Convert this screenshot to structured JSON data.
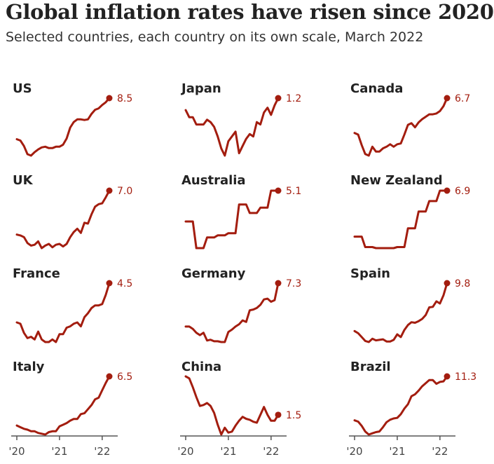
{
  "header": {
    "title": "Global inflation rates have risen since 2020",
    "subtitle": "Selected countries, each country on its own scale, March 2022"
  },
  "colors": {
    "line": "#a31d0f",
    "axis": "#555555",
    "text": "#222222"
  },
  "chart_data": {
    "type": "line",
    "title": "Global inflation rates have risen since 2020",
    "subtitle": "Selected countries, each country on its own scale, March 2022",
    "x_tick_labels": [
      "'20",
      "'21",
      "'22"
    ],
    "x": [
      "2020-01",
      "2020-02",
      "2020-03",
      "2020-04",
      "2020-05",
      "2020-06",
      "2020-07",
      "2020-08",
      "2020-09",
      "2020-10",
      "2020-11",
      "2020-12",
      "2021-01",
      "2021-02",
      "2021-03",
      "2021-04",
      "2021-05",
      "2021-06",
      "2021-07",
      "2021-08",
      "2021-09",
      "2021-10",
      "2021-11",
      "2021-12",
      "2022-01",
      "2022-02",
      "2022-03"
    ],
    "panels": [
      {
        "name": "US",
        "last_label": "8.5",
        "values": [
          2.5,
          2.3,
          1.5,
          0.3,
          0.1,
          0.6,
          1.0,
          1.3,
          1.4,
          1.2,
          1.2,
          1.4,
          1.4,
          1.7,
          2.6,
          4.2,
          5.0,
          5.4,
          5.4,
          5.3,
          5.4,
          6.2,
          6.8,
          7.0,
          7.5,
          7.9,
          8.5
        ]
      },
      {
        "name": "Japan",
        "last_label": "1.2",
        "values": [
          0.7,
          0.4,
          0.4,
          0.1,
          0.1,
          0.1,
          0.3,
          0.2,
          0.0,
          -0.4,
          -0.9,
          -1.2,
          -0.6,
          -0.4,
          -0.2,
          -1.1,
          -0.8,
          -0.5,
          -0.3,
          -0.4,
          0.2,
          0.1,
          0.6,
          0.8,
          0.5,
          0.9,
          1.2
        ]
      },
      {
        "name": "Canada",
        "last_label": "6.7",
        "values": [
          2.4,
          2.2,
          0.9,
          -0.2,
          -0.4,
          0.7,
          0.1,
          0.1,
          0.5,
          0.7,
          1.0,
          0.7,
          1.0,
          1.1,
          2.2,
          3.4,
          3.6,
          3.1,
          3.7,
          4.1,
          4.4,
          4.7,
          4.7,
          4.8,
          5.1,
          5.7,
          6.7
        ]
      },
      {
        "name": "UK",
        "last_label": "7.0",
        "values": [
          1.8,
          1.7,
          1.5,
          0.8,
          0.5,
          0.6,
          1.0,
          0.2,
          0.5,
          0.7,
          0.3,
          0.6,
          0.7,
          0.4,
          0.7,
          1.5,
          2.1,
          2.5,
          2.0,
          3.2,
          3.1,
          4.2,
          5.1,
          5.4,
          5.5,
          6.2,
          7.0
        ]
      },
      {
        "name": "Australia",
        "last_label": "5.1",
        "values": [
          2.2,
          2.2,
          2.2,
          -0.3,
          -0.3,
          -0.3,
          0.7,
          0.7,
          0.7,
          0.9,
          0.9,
          0.9,
          1.1,
          1.1,
          1.1,
          3.8,
          3.8,
          3.8,
          3.0,
          3.0,
          3.0,
          3.5,
          3.5,
          3.5,
          5.1,
          5.1,
          5.1
        ]
      },
      {
        "name": "New Zealand",
        "last_label": "6.9",
        "values": [
          2.5,
          2.5,
          2.5,
          1.5,
          1.5,
          1.5,
          1.4,
          1.4,
          1.4,
          1.4,
          1.4,
          1.4,
          1.5,
          1.5,
          1.5,
          3.3,
          3.3,
          3.3,
          4.9,
          4.9,
          4.9,
          5.9,
          5.9,
          5.9,
          6.9,
          6.9,
          6.9
        ]
      },
      {
        "name": "France",
        "last_label": "4.5",
        "values": [
          1.5,
          1.4,
          0.7,
          0.3,
          0.4,
          0.2,
          0.8,
          0.2,
          0.0,
          0.0,
          0.2,
          0.0,
          0.6,
          0.6,
          1.1,
          1.2,
          1.4,
          1.5,
          1.2,
          1.9,
          2.2,
          2.6,
          2.8,
          2.8,
          2.9,
          3.6,
          4.5
        ]
      },
      {
        "name": "Germany",
        "last_label": "7.3",
        "values": [
          1.7,
          1.7,
          1.4,
          0.9,
          0.6,
          0.9,
          -0.1,
          0.0,
          -0.2,
          -0.2,
          -0.3,
          -0.3,
          1.0,
          1.3,
          1.7,
          2.0,
          2.5,
          2.3,
          3.8,
          3.9,
          4.1,
          4.5,
          5.2,
          5.3,
          4.9,
          5.1,
          7.3
        ]
      },
      {
        "name": "Spain",
        "last_label": "9.8",
        "values": [
          1.1,
          0.7,
          0.0,
          -0.7,
          -0.9,
          -0.3,
          -0.6,
          -0.5,
          -0.4,
          -0.8,
          -0.8,
          -0.5,
          0.5,
          0.0,
          1.3,
          2.2,
          2.7,
          2.6,
          2.9,
          3.3,
          4.0,
          5.4,
          5.5,
          6.5,
          6.1,
          7.6,
          9.8
        ]
      },
      {
        "name": "Italy",
        "last_label": "6.5",
        "values": [
          0.5,
          0.3,
          0.1,
          0.0,
          -0.2,
          -0.2,
          -0.4,
          -0.5,
          -0.6,
          -0.3,
          -0.2,
          -0.2,
          0.4,
          0.6,
          0.8,
          1.1,
          1.3,
          1.3,
          1.9,
          2.0,
          2.5,
          3.0,
          3.7,
          3.9,
          4.8,
          5.7,
          6.5
        ]
      },
      {
        "name": "China",
        "last_label": "1.5",
        "values": [
          5.4,
          5.2,
          4.3,
          3.3,
          2.4,
          2.5,
          2.7,
          2.4,
          1.7,
          0.5,
          -0.5,
          0.2,
          -0.3,
          -0.2,
          0.4,
          0.9,
          1.3,
          1.1,
          1.0,
          0.8,
          0.7,
          1.5,
          2.3,
          1.5,
          0.9,
          0.9,
          1.5
        ]
      },
      {
        "name": "Brazil",
        "last_label": "11.3",
        "values": [
          4.2,
          4.0,
          3.3,
          2.4,
          1.9,
          2.1,
          2.3,
          2.4,
          3.1,
          3.9,
          4.3,
          4.5,
          4.6,
          5.2,
          6.1,
          6.8,
          8.1,
          8.4,
          9.0,
          9.7,
          10.2,
          10.7,
          10.7,
          10.1,
          10.4,
          10.5,
          11.3
        ]
      }
    ]
  }
}
